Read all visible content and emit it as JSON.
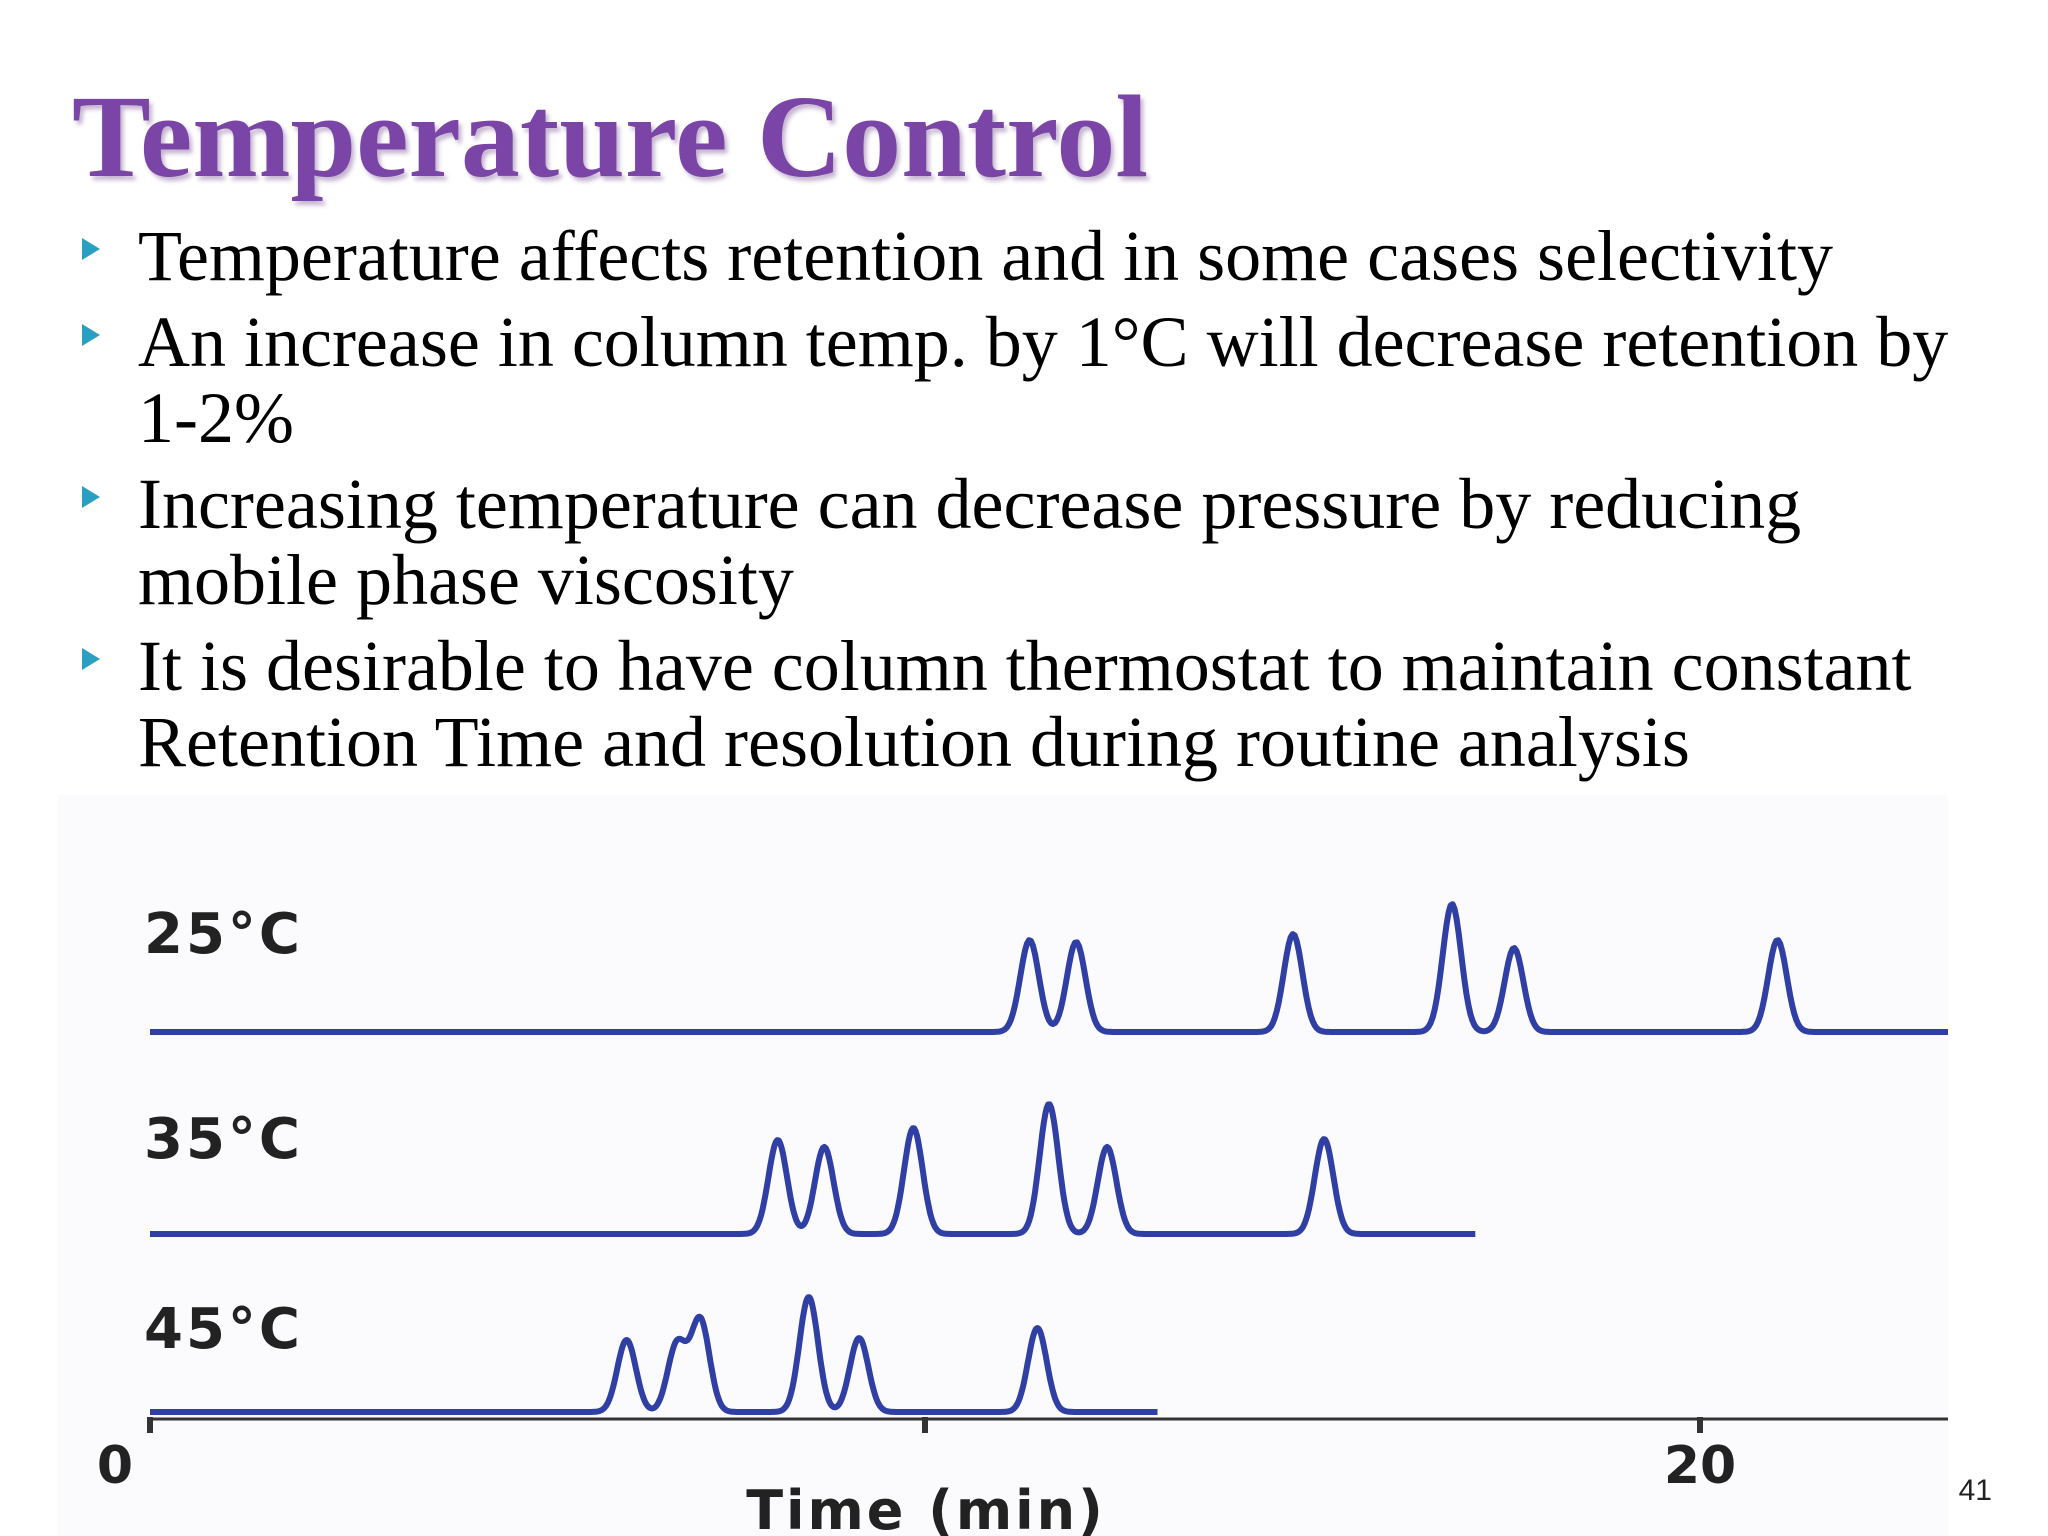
{
  "slide": {
    "title": "Temperature Control",
    "bullets": [
      "Temperature affects retention and in some cases selectivity",
      "An increase in column temp. by 1°C will decrease retention by 1-2%",
      "Increasing temperature can decrease pressure by reducing mobile phase viscosity",
      "It is desirable to have column thermostat to maintain constant Retention Time and resolution during routine analysis"
    ],
    "page_number": "41",
    "colors": {
      "title": "#7a45a6",
      "bullet_marker": "#2a9fc2",
      "trace": "#2f3fa3"
    }
  },
  "chart_data": {
    "type": "line",
    "xlabel": "Time (min)",
    "xlim": [
      0,
      23.2
    ],
    "x_ticks": [
      0,
      10,
      20
    ],
    "x_tick_labels": [
      "0",
      "",
      "20"
    ],
    "series": [
      {
        "name": "25°C",
        "peaks": [
          11.35,
          11.95,
          14.75,
          16.8,
          17.6,
          21.0
        ],
        "heights": [
          0.92,
          0.9,
          0.98,
          1.28,
          0.84,
          0.92
        ],
        "end": 23.2
      },
      {
        "name": "35°C",
        "peaks": [
          8.1,
          8.7,
          9.85,
          11.6,
          12.35,
          15.15
        ],
        "heights": [
          0.94,
          0.87,
          1.06,
          1.3,
          0.87,
          0.95
        ],
        "end": 17.1
      },
      {
        "name": "45°C",
        "peaks": [
          6.15,
          6.8,
          7.1,
          8.5,
          9.15,
          11.45
        ],
        "heights": [
          0.72,
          0.68,
          0.92,
          1.15,
          0.74,
          0.84
        ],
        "end": 13.0
      }
    ]
  }
}
